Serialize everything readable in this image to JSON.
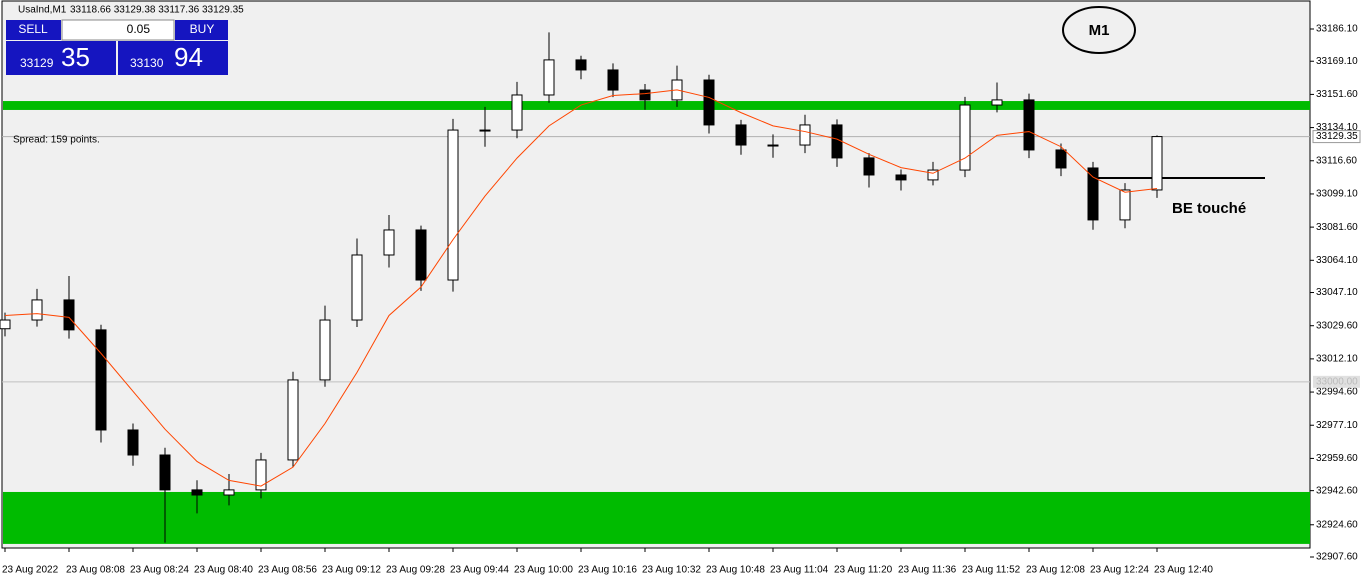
{
  "header": {
    "symbol": "UsaInd,M1",
    "ohlc": "33118.66 33129.38 33117.36 33129.35"
  },
  "trade_panel": {
    "sell": "SELL",
    "buy": "BUY",
    "lot": "0.05",
    "sell_big": "33129",
    "sell_small": "35",
    "buy_big": "33130",
    "buy_small": "94"
  },
  "spread": "Spread: 159 points.",
  "timeframe_badge": "M1",
  "annotation": "BE touché",
  "chart_data": {
    "type": "candlestick",
    "categories": [
      "23 Aug 2022",
      null,
      "23 Aug 08:08",
      null,
      "23 Aug 08:24",
      null,
      "23 Aug 08:40",
      null,
      "23 Aug 08:56",
      null,
      "23 Aug 09:12",
      null,
      "23 Aug 09:28",
      null,
      "23 Aug 09:44",
      null,
      "23 Aug 10:00",
      null,
      "23 Aug 10:16",
      null,
      "23 Aug 10:32",
      null,
      "23 Aug 10:48",
      null,
      "23 Aug 11:04",
      null,
      "23 Aug 11:20",
      null,
      "23 Aug 11:36",
      null,
      "23 Aug 11:52",
      null,
      "23 Aug 12:08",
      null,
      "23 Aug 12:24",
      null,
      "23 Aug 12:40"
    ],
    "open": [
      33028.0,
      33032.6,
      33043.2,
      33027.4,
      32974.6,
      32961.4,
      32943.0,
      32940.3,
      32943.0,
      32958.8,
      33001.0,
      33032.6,
      33066.9,
      33080.1,
      33053.7,
      33132.8,
      33132.8,
      33151.3,
      33169.8,
      33164.5,
      33153.9,
      33148.7,
      33159.2,
      33135.5,
      33124.9,
      33124.9,
      33135.5,
      33118.1,
      33109.1,
      33106.5,
      33111.7,
      33146.0,
      33148.7,
      33122.3,
      33112.8,
      33085.4,
      33101.2
    ],
    "high": [
      33036.5,
      33049.0,
      33055.8,
      33030.1,
      32978.0,
      32965.2,
      32948.1,
      32951.4,
      32962.5,
      33005.3,
      33040.2,
      33075.6,
      33088.0,
      33082.4,
      33138.7,
      33145.0,
      33158.2,
      33184.3,
      33172.0,
      33168.0,
      33157.1,
      33166.8,
      33162.0,
      33138.2,
      33130.5,
      33140.9,
      33138.4,
      33120.6,
      33112.0,
      33116.0,
      33150.3,
      33157.9,
      33152.0,
      33125.7,
      33116.0,
      33104.8,
      33130.0
    ],
    "low": [
      33024.0,
      33029.1,
      33022.8,
      32968.0,
      32955.7,
      32915.2,
      32930.6,
      32934.8,
      32938.5,
      32955.0,
      32997.4,
      33028.9,
      33060.3,
      33048.0,
      33047.6,
      33124.0,
      33128.5,
      33147.2,
      33159.6,
      33150.2,
      33143.5,
      33145.0,
      33131.0,
      33119.8,
      33118.2,
      33120.6,
      33113.4,
      33102.5,
      33100.9,
      33103.6,
      33108.0,
      33142.1,
      33118.0,
      33108.5,
      33080.2,
      33081.0,
      33097.0
    ],
    "close": [
      33032.6,
      33043.2,
      33027.4,
      32974.6,
      32961.4,
      32943.0,
      32940.3,
      32943.0,
      32958.8,
      33001.0,
      33032.6,
      33066.9,
      33080.1,
      33053.7,
      33132.8,
      33132.8,
      33151.3,
      33169.8,
      33164.5,
      33153.9,
      33148.7,
      33159.2,
      33135.5,
      33124.9,
      33124.9,
      33135.5,
      33118.1,
      33109.1,
      33106.5,
      33111.7,
      33146.0,
      33148.7,
      33122.3,
      33112.8,
      33085.4,
      33101.2,
      33129.35
    ],
    "ma": {
      "color": "#ff4500",
      "values": [
        33035,
        33036,
        33034,
        33015,
        32995,
        32975,
        32958,
        32948,
        32945,
        32955,
        32978,
        33005,
        33035,
        33050,
        33075,
        33098,
        33118,
        33135,
        33146,
        33151,
        33152,
        33154,
        33150,
        33142,
        33135,
        33132,
        33128,
        33120,
        33113,
        33110,
        33118,
        33130,
        33132,
        33124,
        33108,
        33100,
        33102
      ]
    },
    "zones": [
      {
        "top": 33148.1,
        "bottom": 33143.4,
        "color": "#00bb00"
      },
      {
        "top": 32941.9,
        "bottom": 32914.5,
        "color": "#00bb00"
      }
    ],
    "price_line": {
      "value": 33129.35,
      "label": "33129.35"
    },
    "level_line": {
      "value": 33000,
      "label": "33000.00"
    },
    "be_level": 33107.5,
    "ylim": [
      32907.6,
      33200.87
    ],
    "yticks": [
      {
        "value": 33186.1,
        "label": "33186.10"
      },
      {
        "value": 33169.1,
        "label": "33169.10"
      },
      {
        "value": 33151.6,
        "label": "33151.60"
      },
      {
        "value": 33134.1,
        "label": "33134.10"
      },
      {
        "value": 33116.6,
        "label": "33116.60"
      },
      {
        "value": 33099.1,
        "label": "33099.10"
      },
      {
        "value": 33081.6,
        "label": "33081.60"
      },
      {
        "value": 33064.1,
        "label": "33064.10"
      },
      {
        "value": 33047.1,
        "label": "33047.10"
      },
      {
        "value": 33029.6,
        "label": "33029.60"
      },
      {
        "value": 33012.1,
        "label": "33012.10"
      },
      {
        "value": 32994.6,
        "label": "32994.60"
      },
      {
        "value": 32977.1,
        "label": "32977.10"
      },
      {
        "value": 32959.6,
        "label": "32959.60"
      },
      {
        "value": 32942.6,
        "label": "32942.60"
      },
      {
        "value": 32924.6,
        "label": "32924.60"
      },
      {
        "value": 32907.6,
        "label": "32907.60"
      }
    ]
  }
}
